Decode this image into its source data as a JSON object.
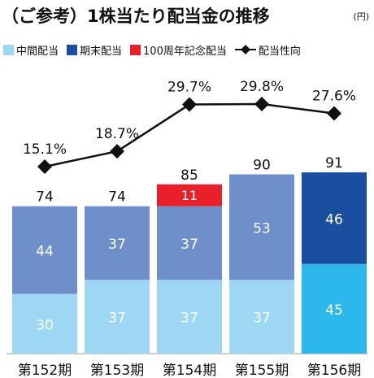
{
  "header": {
    "title": "（ご参考）1株当たり配当金の推移",
    "unit": "(円)"
  },
  "legend": {
    "items": [
      {
        "label": "中間配当",
        "color": "#8ed0f0",
        "kind": "box"
      },
      {
        "label": "期末配当",
        "color": "#1a4e9e",
        "kind": "box"
      },
      {
        "label": "100周年記念配当",
        "color": "#e8202a",
        "kind": "box"
      },
      {
        "label": "配当性向",
        "color": "#111111",
        "kind": "line-diamond"
      }
    ]
  },
  "chart_data": {
    "type": "bar",
    "stacked": true,
    "categories": [
      "第152期",
      "第153期",
      "第154期",
      "第155期",
      "第156期"
    ],
    "series": [
      {
        "name": "中間配当",
        "values": [
          30,
          37,
          37,
          37,
          45
        ]
      },
      {
        "name": "期末配当",
        "values": [
          44,
          37,
          37,
          53,
          46
        ]
      },
      {
        "name": "100周年記念配当",
        "values": [
          0,
          0,
          11,
          0,
          0
        ]
      }
    ],
    "totals": [
      74,
      74,
      85,
      90,
      91
    ],
    "line_series": {
      "name": "配当性向",
      "values": [
        15.1,
        18.7,
        29.7,
        29.8,
        27.6
      ],
      "labels": [
        "15.1%",
        "18.7%",
        "29.7%",
        "29.8%",
        "27.6%"
      ]
    },
    "ylim": [
      0,
      100
    ],
    "colors": {
      "interim": "#9dd7f4",
      "year_end_standard": "#6f8fcb",
      "interim_highlight": "#2cb8ea",
      "year_end_highlight": "#1a4e9e",
      "memorial": "#e8202a",
      "line": "#111111"
    }
  }
}
